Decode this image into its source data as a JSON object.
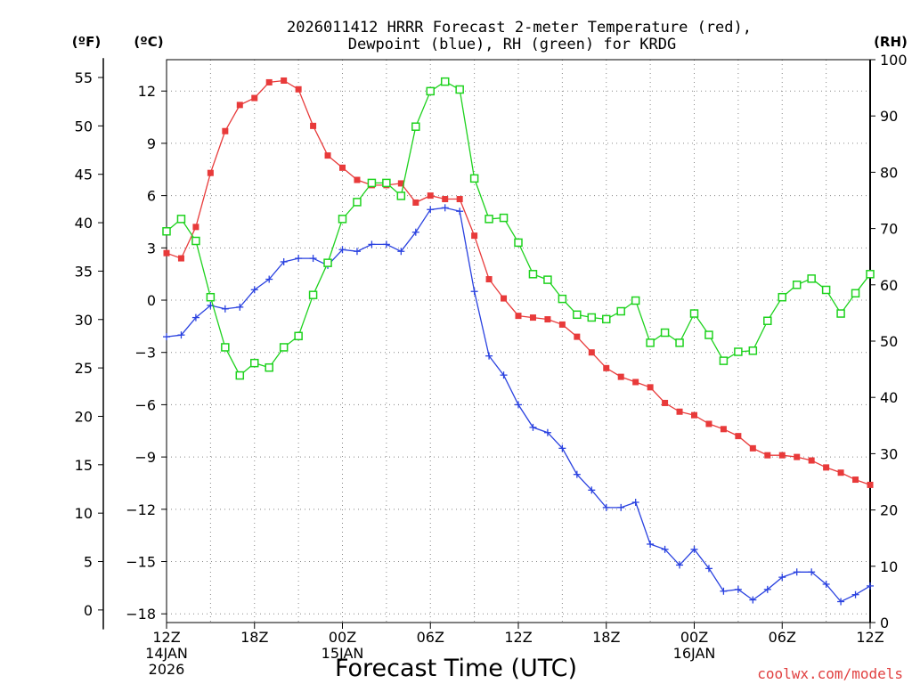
{
  "chart_data": {
    "type": "line",
    "title_line1": "2026011412 HRRR Forecast 2-meter Temperature (red),",
    "title_line2": "Dewpoint (blue), RH (green) for KRDG",
    "xlabel": "Forecast Time (UTC)",
    "credit": "coolwx.com/models",
    "unit_f": "(ºF)",
    "unit_c": "(ºC)",
    "unit_rh": "(RH)",
    "x_start_hour": 0,
    "x_end_hour": 48,
    "x_ticks": [
      {
        "hour": 0,
        "label": "12Z",
        "sub1": "14JAN",
        "sub2": "2026"
      },
      {
        "hour": 6,
        "label": "18Z",
        "sub1": "",
        "sub2": ""
      },
      {
        "hour": 12,
        "label": "00Z",
        "sub1": "15JAN",
        "sub2": ""
      },
      {
        "hour": 18,
        "label": "06Z",
        "sub1": "",
        "sub2": ""
      },
      {
        "hour": 24,
        "label": "12Z",
        "sub1": "",
        "sub2": ""
      },
      {
        "hour": 30,
        "label": "18Z",
        "sub1": "",
        "sub2": ""
      },
      {
        "hour": 36,
        "label": "00Z",
        "sub1": "16JAN",
        "sub2": ""
      },
      {
        "hour": 42,
        "label": "06Z",
        "sub1": "",
        "sub2": ""
      },
      {
        "hour": 48,
        "label": "12Z",
        "sub1": "",
        "sub2": ""
      }
    ],
    "ylim_c": [
      -18.5,
      13.8
    ],
    "yticks_c": [
      12,
      9,
      6,
      3,
      0,
      -3,
      -6,
      -9,
      -12,
      -15,
      -18
    ],
    "yticks_c_labels": [
      "12",
      "9",
      "6",
      "3",
      "0",
      "−3",
      "−6",
      "−9",
      "−12",
      "−15",
      "−18"
    ],
    "yticks_f": [
      55,
      50,
      45,
      40,
      35,
      30,
      25,
      20,
      15,
      10,
      5,
      0
    ],
    "ylim_rh": [
      0,
      100
    ],
    "yticks_rh": [
      100,
      90,
      80,
      70,
      60,
      50,
      40,
      30,
      20,
      10,
      0
    ],
    "series": [
      {
        "name": "Temperature",
        "color": "#e83a3a",
        "marker": "filled-square",
        "values": [
          2.7,
          2.4,
          4.2,
          7.3,
          9.7,
          11.2,
          11.6,
          12.5,
          12.6,
          12.1,
          10.0,
          8.3,
          7.6,
          6.9,
          6.6,
          6.6,
          6.7,
          5.6,
          6.0,
          5.8,
          5.8,
          3.7,
          1.2,
          0.1,
          -0.9,
          -1.0,
          -1.1,
          -1.4,
          -2.1,
          -3.0,
          -3.9,
          -4.4,
          -4.7,
          -5.0,
          -5.9,
          -6.4,
          -6.6,
          -7.1,
          -7.4,
          -7.8,
          -8.5,
          -8.9,
          -8.9,
          -9.0,
          -9.2,
          -9.6,
          -9.9,
          -10.3,
          -10.6
        ]
      },
      {
        "name": "Dewpoint",
        "color": "#2a42e0",
        "marker": "plus",
        "values": [
          -2.1,
          -2.0,
          -1.0,
          -0.3,
          -0.5,
          -0.4,
          0.6,
          1.2,
          2.2,
          2.4,
          2.4,
          2.0,
          2.9,
          2.8,
          3.2,
          3.2,
          2.8,
          3.9,
          5.2,
          5.3,
          5.1,
          0.5,
          -3.2,
          -4.3,
          -6.0,
          -7.3,
          -7.6,
          -8.5,
          -10.0,
          -10.9,
          -11.9,
          -11.9,
          -11.6,
          -14.0,
          -14.3,
          -15.2,
          -14.3,
          -15.4,
          -16.7,
          -16.6,
          -17.2,
          -16.6,
          -15.9,
          -15.6,
          -15.6,
          -16.3,
          -17.3,
          -16.9,
          -16.4
        ]
      },
      {
        "name": "RH",
        "color": "#1ed21e",
        "marker": "open-square",
        "values": [
          69.5,
          71.7,
          67.8,
          57.8,
          48.9,
          43.9,
          46.1,
          45.3,
          48.9,
          50.9,
          58.2,
          63.9,
          71.7,
          74.7,
          78.1,
          78.1,
          75.8,
          88.1,
          94.4,
          96.1,
          94.7,
          78.9,
          71.7,
          71.9,
          67.5,
          61.9,
          60.9,
          57.5,
          54.7,
          54.2,
          53.9,
          55.3,
          57.2,
          49.7,
          51.5,
          49.7,
          54.9,
          51.1,
          46.5,
          48.1,
          48.3,
          53.6,
          57.8,
          60.0,
          61.1,
          59.1,
          54.9,
          58.5,
          61.9
        ]
      }
    ]
  }
}
